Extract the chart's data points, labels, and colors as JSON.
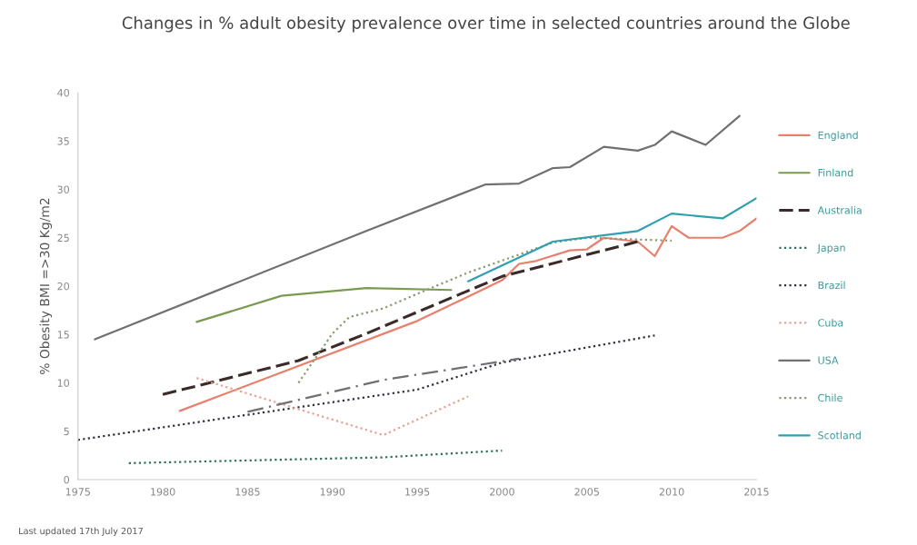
{
  "chart_data": {
    "type": "line",
    "title": "Changes in % adult obesity prevalence over time in selected countries around the Globe",
    "ylabel": "% Obesity BMI =>30 Kg/m2",
    "xlim": [
      1975,
      2015
    ],
    "xticks": [
      1975,
      1980,
      1985,
      1990,
      1995,
      2000,
      2005,
      2010,
      2015
    ],
    "ylim": [
      0,
      40
    ],
    "yticks": [
      0,
      5,
      10,
      15,
      20,
      25,
      30,
      35,
      40
    ],
    "grid": false,
    "legend": "right",
    "marker": "none",
    "annotations": [
      "Last updated 17th July 2017"
    ],
    "series": [
      {
        "name": "England",
        "color": "#e8806e",
        "line_style": "solid",
        "x": [
          1981,
          1995,
          2000,
          2001,
          2002,
          2004,
          2005,
          2006,
          2008,
          2009,
          2010,
          2011,
          2013,
          2014,
          2015
        ],
        "values": [
          7.1,
          16.4,
          20.6,
          22.3,
          22.6,
          23.7,
          23.8,
          25.0,
          24.6,
          23.1,
          26.2,
          25.0,
          25.0,
          25.7,
          27.0
        ]
      },
      {
        "name": "Finland",
        "color": "#7a9a50",
        "line_style": "solid",
        "x": [
          1982,
          1987,
          1992,
          1997
        ],
        "values": [
          16.3,
          19.0,
          19.8,
          19.6
        ]
      },
      {
        "name": "Australia",
        "color": "#3a2a2a",
        "line_style": "dashed",
        "x": [
          1980,
          1988,
          1992,
          2000,
          2008
        ],
        "values": [
          8.8,
          12.3,
          15.1,
          21.0,
          24.6
        ]
      },
      {
        "name": "Japan",
        "color": "#2e6e60",
        "line_style": "dotted",
        "x": [
          1978,
          1993,
          2000
        ],
        "values": [
          1.7,
          2.3,
          3.0
        ]
      },
      {
        "name": "Brazil",
        "color": "#303040",
        "line_style": "dotted",
        "x": [
          1975,
          1995,
          2000,
          2009
        ],
        "values": [
          4.1,
          9.3,
          12.1,
          14.9
        ]
      },
      {
        "name": "Cuba",
        "color": "#e8a090",
        "line_style": "dotted",
        "x": [
          1982,
          1993,
          1998
        ],
        "values": [
          10.5,
          4.6,
          8.6
        ]
      },
      {
        "name": "USA",
        "color": "#707070",
        "line_style": "solid",
        "x": [
          1976,
          1992,
          1999,
          2001,
          2003,
          2004,
          2006,
          2008,
          2009,
          2010,
          2012,
          2014
        ],
        "values": [
          14.5,
          25.7,
          30.5,
          30.6,
          32.2,
          32.3,
          34.4,
          34.0,
          34.6,
          36.0,
          34.6,
          37.6
        ]
      },
      {
        "name": "Chile",
        "color": "#8a9a70",
        "line_style": "dotted",
        "x": [
          1988,
          1990,
          1991,
          1993,
          1995,
          1998,
          2003,
          2005,
          2010
        ],
        "values": [
          10.0,
          15.1,
          16.8,
          17.7,
          19.2,
          21.4,
          24.5,
          25.0,
          24.7
        ]
      },
      {
        "name": "Scotland",
        "color": "#30a0b0",
        "line_style": "solid",
        "x": [
          1998,
          2003,
          2008,
          2010,
          2013,
          2015
        ],
        "values": [
          20.5,
          24.6,
          25.7,
          27.5,
          27.0,
          29.1
        ]
      },
      {
        "color": "#707070",
        "line_style": "dashdot",
        "x": [
          1985,
          1993,
          2001
        ],
        "values": [
          7.0,
          10.3,
          12.5
        ]
      }
    ]
  }
}
